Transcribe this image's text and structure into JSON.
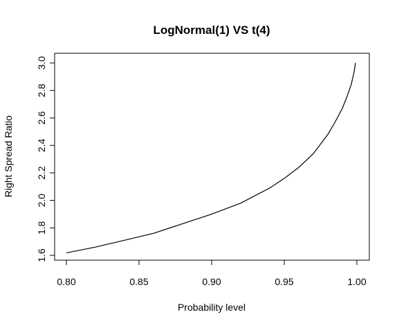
{
  "chart_data": {
    "type": "line",
    "title": "LogNormal(1) VS t(4)",
    "xlabel": "Probability level",
    "ylabel": "Right Spread Ratio",
    "xlim": [
      0.8,
      1.0
    ],
    "ylim": [
      1.6,
      3.0
    ],
    "x_ticks": [
      "0.80",
      "0.85",
      "0.90",
      "0.95",
      "1.00"
    ],
    "y_ticks": [
      "1.6",
      "1.8",
      "2.0",
      "2.2",
      "2.4",
      "2.6",
      "2.8",
      "3.0"
    ],
    "grid": false,
    "series": [
      {
        "x": [
          0.8,
          0.82,
          0.84,
          0.86,
          0.88,
          0.9,
          0.92,
          0.94,
          0.95,
          0.96,
          0.97,
          0.98,
          0.985,
          0.99,
          0.993,
          0.996,
          0.998,
          0.999
        ],
        "y": [
          1.618,
          1.66,
          1.71,
          1.76,
          1.83,
          1.9,
          1.98,
          2.09,
          2.16,
          2.24,
          2.34,
          2.48,
          2.57,
          2.67,
          2.75,
          2.84,
          2.93,
          3.0
        ]
      }
    ]
  }
}
